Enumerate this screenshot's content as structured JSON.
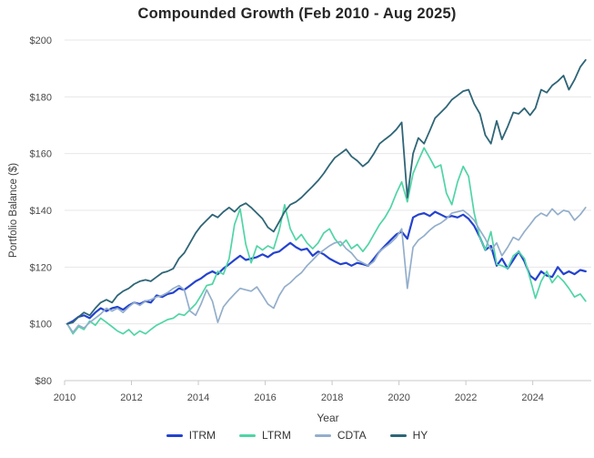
{
  "title": "Compounded Growth (Feb 2010 - Aug 2025)",
  "chart_data": {
    "type": "line",
    "title": "Compounded Growth (Feb 2010 - Aug 2025)",
    "xlabel": "Year",
    "ylabel": "Portfolio Balance ($)",
    "ylim": [
      80,
      200
    ],
    "xlim": [
      2010.0,
      2025.75
    ],
    "grid": "horizontal",
    "legend_position": "bottom",
    "y_ticks": [
      {
        "value": 80,
        "label": "$80"
      },
      {
        "value": 100,
        "label": "$100"
      },
      {
        "value": 120,
        "label": "$120"
      },
      {
        "value": 140,
        "label": "$140"
      },
      {
        "value": 160,
        "label": "$160"
      },
      {
        "value": 180,
        "label": "$180"
      },
      {
        "value": 200,
        "label": "$200"
      }
    ],
    "x_ticks": [
      {
        "value": 2010,
        "label": "2010"
      },
      {
        "value": 2012,
        "label": "2012"
      },
      {
        "value": 2014,
        "label": "2014"
      },
      {
        "value": 2016,
        "label": "2016"
      },
      {
        "value": 2018,
        "label": "2018"
      },
      {
        "value": 2020,
        "label": "2020"
      },
      {
        "value": 2022,
        "label": "2022"
      },
      {
        "value": 2024,
        "label": "2024"
      }
    ],
    "x": [
      2010.08,
      2010.25,
      2010.42,
      2010.58,
      2010.75,
      2010.92,
      2011.08,
      2011.25,
      2011.42,
      2011.58,
      2011.75,
      2011.92,
      2012.08,
      2012.25,
      2012.42,
      2012.58,
      2012.75,
      2012.92,
      2013.08,
      2013.25,
      2013.42,
      2013.58,
      2013.75,
      2013.92,
      2014.08,
      2014.25,
      2014.42,
      2014.58,
      2014.75,
      2014.92,
      2015.08,
      2015.25,
      2015.42,
      2015.58,
      2015.75,
      2015.92,
      2016.08,
      2016.25,
      2016.42,
      2016.58,
      2016.75,
      2016.92,
      2017.08,
      2017.25,
      2017.42,
      2017.58,
      2017.75,
      2017.92,
      2018.08,
      2018.25,
      2018.42,
      2018.58,
      2018.75,
      2018.92,
      2019.08,
      2019.25,
      2019.42,
      2019.58,
      2019.75,
      2019.92,
      2020.08,
      2020.25,
      2020.42,
      2020.58,
      2020.75,
      2020.92,
      2021.08,
      2021.25,
      2021.42,
      2021.58,
      2021.75,
      2021.92,
      2022.08,
      2022.25,
      2022.42,
      2022.58,
      2022.75,
      2022.92,
      2023.08,
      2023.25,
      2023.42,
      2023.58,
      2023.75,
      2023.92,
      2024.08,
      2024.25,
      2024.42,
      2024.58,
      2024.75,
      2024.92,
      2025.08,
      2025.25,
      2025.42,
      2025.58
    ],
    "series": [
      {
        "name": "ITRM",
        "color": "#2442cf",
        "width": 2.2,
        "values": [
          100,
          101,
          102.5,
          103,
          102,
          104,
          105.5,
          104.5,
          105.5,
          106,
          105,
          106.5,
          107.5,
          107,
          108,
          107.5,
          110,
          109.5,
          110.5,
          111,
          112.5,
          112,
          113.5,
          115,
          116,
          117.5,
          118.5,
          117.5,
          119.5,
          121,
          122.5,
          124,
          122.5,
          123,
          123.5,
          124.5,
          123.5,
          125,
          125.5,
          127,
          128.5,
          127,
          126,
          126.5,
          124,
          125.5,
          124.5,
          123,
          122,
          121,
          121.5,
          120.5,
          121.5,
          121,
          120.5,
          123,
          125.5,
          127.5,
          129.5,
          131.5,
          132.5,
          130,
          137.5,
          138.5,
          139,
          138,
          139.5,
          138.5,
          137.5,
          138,
          137.5,
          138.5,
          137,
          134.5,
          130.5,
          126,
          127.5,
          120.5,
          123,
          119.5,
          122.5,
          125.5,
          122,
          117,
          115.5,
          118.5,
          117,
          116.5,
          120,
          117.5,
          118.5,
          117.5,
          119,
          118.5
        ]
      },
      {
        "name": "LTRM",
        "color": "#50d5a5",
        "width": 1.7,
        "values": [
          100,
          96.5,
          99,
          98,
          101,
          99.5,
          102,
          100.5,
          99,
          97.5,
          96.5,
          98,
          96,
          97.5,
          96.5,
          98,
          99.5,
          100.5,
          101.5,
          102,
          103.5,
          103,
          105,
          107,
          110,
          113.5,
          114,
          118.5,
          117.5,
          123,
          135,
          140.5,
          128,
          121.5,
          127.5,
          126,
          127.5,
          126.5,
          133,
          142,
          133.5,
          129.5,
          131.5,
          128.5,
          126.5,
          128.5,
          132,
          133.5,
          130,
          127.5,
          129.5,
          126.5,
          128,
          125.5,
          128,
          131.5,
          135,
          137.5,
          141,
          146,
          150,
          143,
          153,
          157.5,
          162,
          158.5,
          155,
          156,
          146,
          142,
          150,
          155.5,
          152,
          139,
          130.5,
          126,
          132.5,
          121,
          120.5,
          119.5,
          124,
          125.5,
          123,
          116,
          109,
          115,
          118.5,
          114.5,
          117,
          115,
          112.5,
          109.5,
          110.5,
          108
        ]
      },
      {
        "name": "CDTA",
        "color": "#93aecb",
        "width": 1.7,
        "values": [
          100,
          97,
          99.5,
          98.5,
          100.5,
          102,
          103.5,
          105.5,
          104.5,
          105.5,
          104,
          106,
          107.5,
          106.5,
          108,
          108.5,
          109.5,
          110,
          111,
          112.5,
          113.5,
          112,
          104.5,
          103,
          107,
          112,
          108,
          100.5,
          106,
          108.5,
          110.5,
          112.5,
          112,
          111.5,
          113,
          110,
          107,
          105.5,
          110,
          113,
          114.5,
          116.5,
          118,
          120.5,
          122.5,
          124.5,
          126,
          127.5,
          128.5,
          129,
          126.5,
          125,
          122.5,
          121.5,
          120.5,
          122,
          125.5,
          127,
          128.5,
          130.5,
          133.5,
          112.5,
          127,
          129.5,
          131,
          133,
          134.5,
          135.5,
          137,
          139,
          139.5,
          140,
          138.5,
          136.5,
          133,
          130,
          126,
          128.5,
          124,
          127,
          130.5,
          129.5,
          132.5,
          135,
          137.5,
          139,
          138,
          140.5,
          138.5,
          140,
          139.5,
          136.5,
          138.5,
          141
        ]
      },
      {
        "name": "HY",
        "color": "#2f6577",
        "width": 1.8,
        "values": [
          100,
          100.5,
          102.5,
          104,
          103,
          105.5,
          107.5,
          108.5,
          107.5,
          110,
          111.5,
          112.5,
          114,
          115,
          115.5,
          115,
          116.5,
          118,
          118.5,
          119.5,
          123,
          125,
          128.5,
          132,
          134.5,
          136.5,
          138.5,
          137.5,
          139.5,
          141,
          139.5,
          141.5,
          142.5,
          141,
          139,
          137,
          134,
          132.5,
          136,
          139.5,
          142,
          143,
          144.5,
          146.5,
          148.5,
          150.5,
          153,
          156,
          158.5,
          160,
          161.5,
          159,
          157.5,
          155.5,
          157,
          160,
          163.5,
          165,
          166.5,
          168.5,
          171,
          144.5,
          160,
          165.5,
          163.5,
          168,
          172.5,
          174.5,
          176.5,
          179,
          180.5,
          182,
          182.5,
          177.5,
          174,
          166.5,
          163.5,
          171.5,
          165,
          169.5,
          174.5,
          174,
          176,
          173.5,
          176,
          182.5,
          181.5,
          184,
          185.5,
          187.5,
          182.5,
          186,
          190.5,
          193
        ]
      }
    ]
  }
}
